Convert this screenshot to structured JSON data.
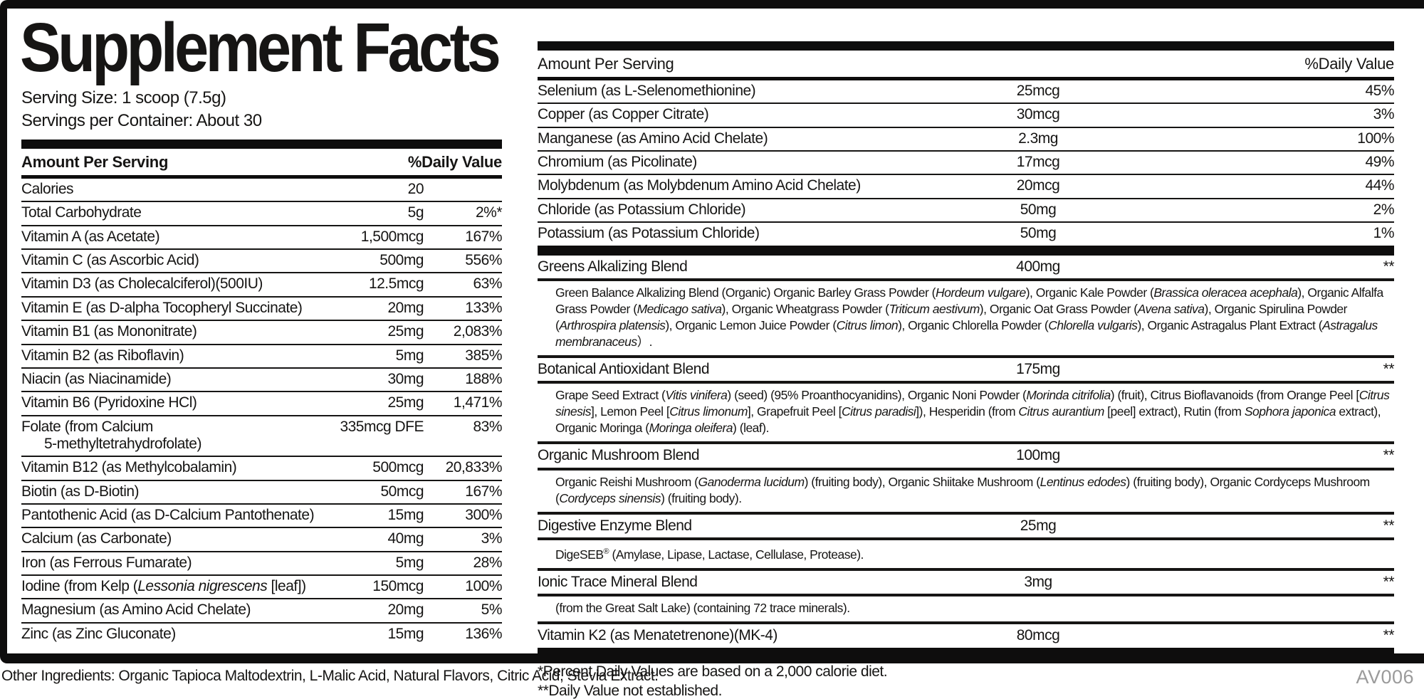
{
  "label": {
    "title": "Supplement Facts",
    "serving_size": "Serving Size: 1 scoop (7.5g)",
    "servings_per_container": "Servings per Container: About 30",
    "headers": {
      "amount": "Amount Per Serving",
      "daily_value": "%Daily Value"
    },
    "colors": {
      "ink": "#161514",
      "bar": "#0e0d0d",
      "code_gray": "#9b9b9b"
    },
    "left_rows": [
      {
        "name": "Calories",
        "amount": "20",
        "dv": ""
      },
      {
        "name": "Total Carbohydrate",
        "amount": "5g",
        "dv": "2%*"
      },
      {
        "name": "Vitamin A (as Acetate)",
        "amount": "1,500mcg",
        "dv": "167%"
      },
      {
        "name": "Vitamin C (as Ascorbic Acid)",
        "amount": "500mg",
        "dv": "556%"
      },
      {
        "name": "Vitamin D3 (as Cholecalciferol)(500IU)",
        "amount": "12.5mcg",
        "dv": "63%"
      },
      {
        "name": "Vitamin E (as D-alpha Tocopheryl Succinate)",
        "amount": "20mg",
        "dv": "133%"
      },
      {
        "name": "Vitamin B1 (as Mononitrate)",
        "amount": "25mg",
        "dv": "2,083%"
      },
      {
        "name": "Vitamin B2 (as Riboflavin)",
        "amount": "5mg",
        "dv": "385%"
      },
      {
        "name": "Niacin (as Niacinamide)",
        "amount": "30mg",
        "dv": "188%"
      },
      {
        "name": "Vitamin B6 (Pyridoxine HCl)",
        "amount": "25mg",
        "dv": "1,471%"
      },
      {
        "name": "Folate (from Calcium",
        "name2": "5-methyltetrahydrofolate)",
        "amount": "335mcg DFE",
        "dv": "83%"
      },
      {
        "name": "Vitamin B12 (as Methylcobalamin)",
        "amount": "500mcg",
        "dv": "20,833%"
      },
      {
        "name": "Biotin (as D-Biotin)",
        "amount": "50mcg",
        "dv": "167%"
      },
      {
        "name": "Pantothenic Acid (as D-Calcium Pantothenate)",
        "amount": "15mg",
        "dv": "300%"
      },
      {
        "name": "Calcium (as Carbonate)",
        "amount": "40mg",
        "dv": "3%"
      },
      {
        "name": "Iron (as Ferrous Fumarate)",
        "amount": "5mg",
        "dv": "28%"
      },
      {
        "name": [
          [
            "n",
            "Iodine (from Kelp ("
          ],
          [
            "i",
            "Lessonia nigrescens"
          ],
          [
            "n",
            " [leaf])"
          ]
        ],
        "amount": "150mcg",
        "dv": "100%"
      },
      {
        "name": "Magnesium (as Amino Acid Chelate)",
        "amount": "20mg",
        "dv": "5%"
      },
      {
        "name": "Zinc (as Zinc Gluconate)",
        "amount": "15mg",
        "dv": "136%"
      }
    ],
    "right_rows": [
      {
        "name": "Selenium (as L-Selenomethionine)",
        "amount": "25mcg",
        "dv": "45%"
      },
      {
        "name": "Copper (as Copper Citrate)",
        "amount": "30mcg",
        "dv": "3%"
      },
      {
        "name": "Manganese (as Amino Acid Chelate)",
        "amount": "2.3mg",
        "dv": "100%"
      },
      {
        "name": "Chromium (as Picolinate)",
        "amount": "17mcg",
        "dv": "49%"
      },
      {
        "name": "Molybdenum (as Molybdenum Amino Acid Chelate)",
        "amount": "20mcg",
        "dv": "44%"
      },
      {
        "name": "Chloride (as Potassium Chloride)",
        "amount": "50mg",
        "dv": "2%"
      },
      {
        "name": "Potassium (as Potassium Chloride)",
        "amount": "50mg",
        "dv": "1%"
      }
    ],
    "blends": [
      {
        "name": "Greens Alkalizing Blend",
        "amount": "400mg",
        "dv": "**",
        "desc": [
          [
            "n",
            "Green Balance Alkalizing Blend (Organic) Organic Barley Grass Powder ("
          ],
          [
            "i",
            "Hordeum vulgare"
          ],
          [
            "n",
            "), Organic Kale Powder ("
          ],
          [
            "i",
            "Brassica oleracea acephala"
          ],
          [
            "n",
            "), Organic Alfalfa Grass Powder ("
          ],
          [
            "i",
            "Medicago sativa"
          ],
          [
            "n",
            "), Organic Wheatgrass Powder ("
          ],
          [
            "i",
            "Triticum aestivum"
          ],
          [
            "n",
            "), Organic Oat Grass Powder ("
          ],
          [
            "i",
            "Avena sativa"
          ],
          [
            "n",
            "), Organic Spirulina Powder ("
          ],
          [
            "i",
            "Arthrospira platensis"
          ],
          [
            "n",
            "), Organic Lemon Juice Powder ("
          ],
          [
            "i",
            "Citrus limon"
          ],
          [
            "n",
            "), Organic Chlorella Powder ("
          ],
          [
            "i",
            "Chlorella vulgaris"
          ],
          [
            "n",
            "), Organic Astragalus Plant Extract ("
          ],
          [
            "i",
            "Astragalus membranaceus"
          ],
          [
            "n",
            "）."
          ]
        ]
      },
      {
        "name": "Botanical Antioxidant Blend",
        "amount": "175mg",
        "dv": "**",
        "desc": [
          [
            "n",
            "Grape Seed Extract ("
          ],
          [
            "i",
            "Vitis vinifera"
          ],
          [
            "n",
            ") (seed) (95% Proanthocyanidins), Organic Noni Powder ("
          ],
          [
            "i",
            "Morinda citrifolia"
          ],
          [
            "n",
            ") (fruit), Citrus Bioflavanoids (from Orange Peel ["
          ],
          [
            "i",
            "Citrus sinesis"
          ],
          [
            "n",
            "], Lemon Peel ["
          ],
          [
            "i",
            "Citrus limonum"
          ],
          [
            "n",
            "], Grapefruit Peel ["
          ],
          [
            "i",
            "Citrus paradisi"
          ],
          [
            "n",
            "]), Hesperidin (from "
          ],
          [
            "i",
            "Citrus aurantium"
          ],
          [
            "n",
            " [peel] extract), Rutin (from "
          ],
          [
            "i",
            "Sophora japonica"
          ],
          [
            "n",
            " extract), Organic Moringa ("
          ],
          [
            "i",
            "Moringa oleifera"
          ],
          [
            "n",
            ") (leaf)."
          ]
        ]
      },
      {
        "name": "Organic Mushroom Blend",
        "amount": "100mg",
        "dv": "**",
        "desc": [
          [
            "n",
            "Organic Reishi Mushroom ("
          ],
          [
            "i",
            "Ganoderma lucidum"
          ],
          [
            "n",
            ") (fruiting body), Organic Shiitake Mushroom ("
          ],
          [
            "i",
            "Lentinus edodes"
          ],
          [
            "n",
            ") (fruiting body), Organic Cordyceps Mushroom ("
          ],
          [
            "i",
            "Cordyceps sinensis"
          ],
          [
            "n",
            ") (fruiting body)."
          ]
        ]
      },
      {
        "name": "Digestive Enzyme Blend",
        "amount": "25mg",
        "dv": "**",
        "desc": [
          [
            "n",
            "DigeSEB"
          ],
          [
            "s",
            "®"
          ],
          [
            "n",
            " (Amylase, Lipase, Lactase, Cellulase, Protease)."
          ]
        ]
      },
      {
        "name": "Ionic Trace Mineral Blend",
        "amount": "3mg",
        "dv": "**",
        "desc": [
          [
            "n",
            "(from the Great Salt Lake) (containing 72 trace minerals)."
          ]
        ]
      },
      {
        "name": "Vitamin K2 (as Menatetrenone)(MK-4)",
        "amount": "80mcg",
        "dv": "**"
      }
    ],
    "footnotes": [
      "*Percent Daily Values are based on a 2,000 calorie diet.",
      "**Daily Value not established."
    ],
    "other_ingredients": "Other Ingredients: Organic Tapioca Maltodextrin, L-Malic Acid, Natural Flavors, Citric Acid, Stevia Extract.",
    "code": "AV006"
  }
}
